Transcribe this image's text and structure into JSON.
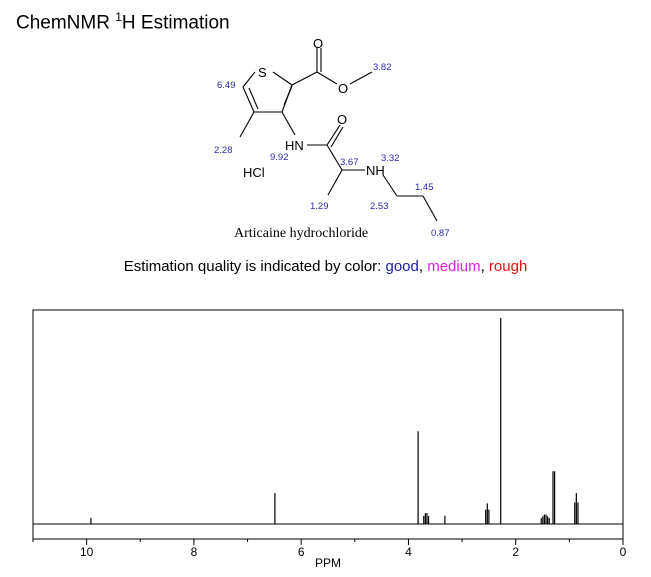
{
  "header": {
    "title_prefix": "ChemNMR ",
    "title_sup": "1",
    "title_suffix": "H Estimation"
  },
  "molecule": {
    "name": "Articaine hydrochloride",
    "salt_label": "HCl",
    "atoms": {
      "sulfur": "S",
      "carbonyl_o1": "O",
      "ester_o": "O",
      "amide_nh": "HN",
      "carbonyl_o2": "O",
      "amine_nh": "NH"
    },
    "shifts": [
      "6.49",
      "3.82",
      "2.28",
      "9.92",
      "3.67",
      "3.32",
      "1.45",
      "1.29",
      "2.53",
      "0.87"
    ]
  },
  "quality": {
    "prefix": "Estimation quality is indicated by color: ",
    "good": "good",
    "sep1": ", ",
    "medium": "medium",
    "sep2": ", ",
    "rough": "rough",
    "colors": {
      "good": "#1a1aa6",
      "medium": "#e020e0",
      "rough": "#e01010"
    }
  },
  "chart_data": {
    "type": "line",
    "xlabel": "PPM",
    "xlim": [
      11,
      0
    ],
    "x_reversed": true,
    "xticks": [
      10,
      8,
      6,
      4,
      2,
      0
    ],
    "peaks": [
      {
        "ppm": 9.92,
        "intensity": 0.03,
        "mult": 1
      },
      {
        "ppm": 6.49,
        "intensity": 0.15,
        "mult": 1
      },
      {
        "ppm": 3.82,
        "intensity": 0.45,
        "mult": 1
      },
      {
        "ppm": 3.67,
        "intensity": 0.06,
        "mult": 4
      },
      {
        "ppm": 3.32,
        "intensity": 0.04,
        "mult": 1
      },
      {
        "ppm": 2.53,
        "intensity": 0.1,
        "mult": 3
      },
      {
        "ppm": 2.28,
        "intensity": 1.0,
        "mult": 1
      },
      {
        "ppm": 1.45,
        "intensity": 0.05,
        "mult": 6
      },
      {
        "ppm": 1.29,
        "intensity": 0.32,
        "mult": 2
      },
      {
        "ppm": 0.87,
        "intensity": 0.15,
        "mult": 3
      }
    ]
  }
}
